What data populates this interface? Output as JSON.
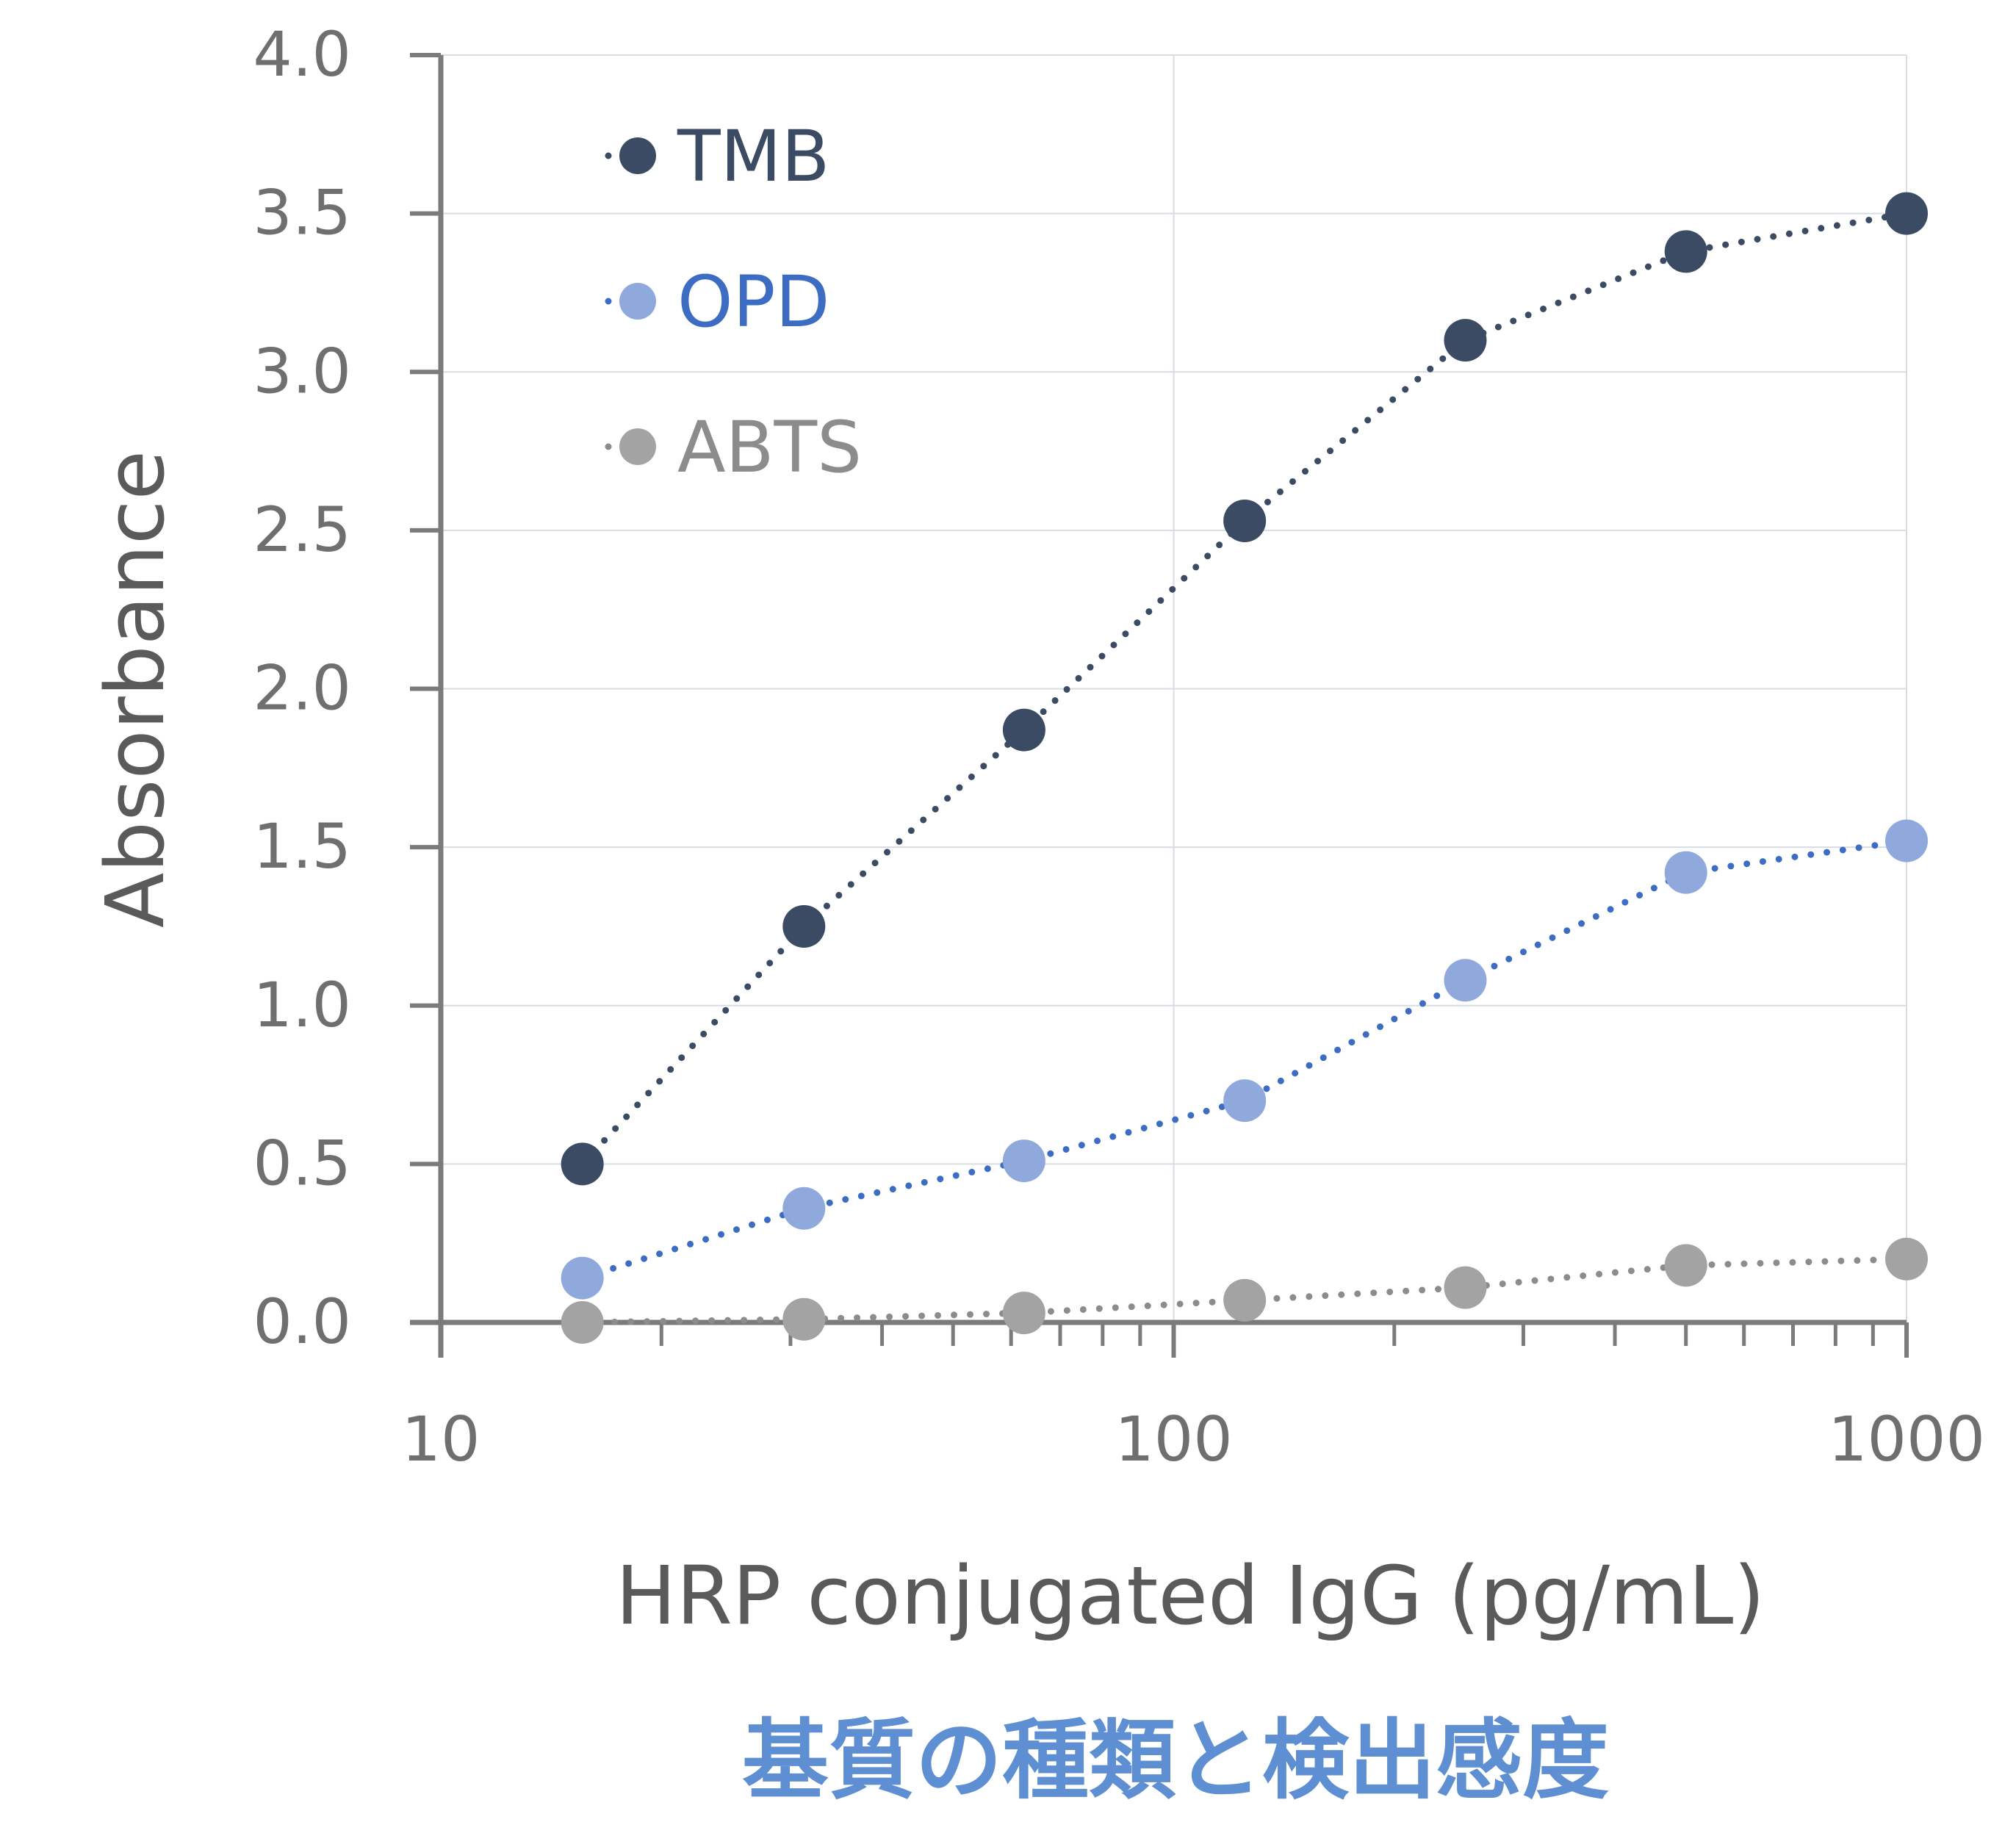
{
  "chart_data": {
    "type": "line",
    "xscale": "log",
    "xlim": [
      10,
      1000
    ],
    "ylim": [
      0,
      4
    ],
    "xlabel": "HRP conjugated IgG (pg/mL)",
    "ylabel": "Absorbance",
    "x_ticks": [
      "10",
      "100",
      "1000"
    ],
    "y_ticks": [
      "0.0",
      "0.5",
      "1.0",
      "1.5",
      "2.0",
      "2.5",
      "3.0",
      "3.5",
      "4.0"
    ],
    "x": [
      15.6,
      31.3,
      62.5,
      125,
      250,
      500,
      1000
    ],
    "series": [
      {
        "name": "TMB",
        "color": "#3b4b63",
        "values": [
          0.5,
          1.25,
          1.87,
          2.53,
          3.1,
          3.38,
          3.5
        ]
      },
      {
        "name": "OPD",
        "color": "#8fa9dc",
        "line_color": "#3d6dc2",
        "values": [
          0.14,
          0.36,
          0.51,
          0.7,
          1.08,
          1.42,
          1.52
        ]
      },
      {
        "name": "ABTS",
        "color": "#a3a3a3",
        "line_color": "#8c8c8c",
        "values": [
          0.0,
          0.01,
          0.03,
          0.07,
          0.11,
          0.18,
          0.2
        ]
      }
    ],
    "grid": true,
    "legend_position": "top-left",
    "caption": "基質の種類と検出感度",
    "caption_color": "#5f8fd3"
  }
}
